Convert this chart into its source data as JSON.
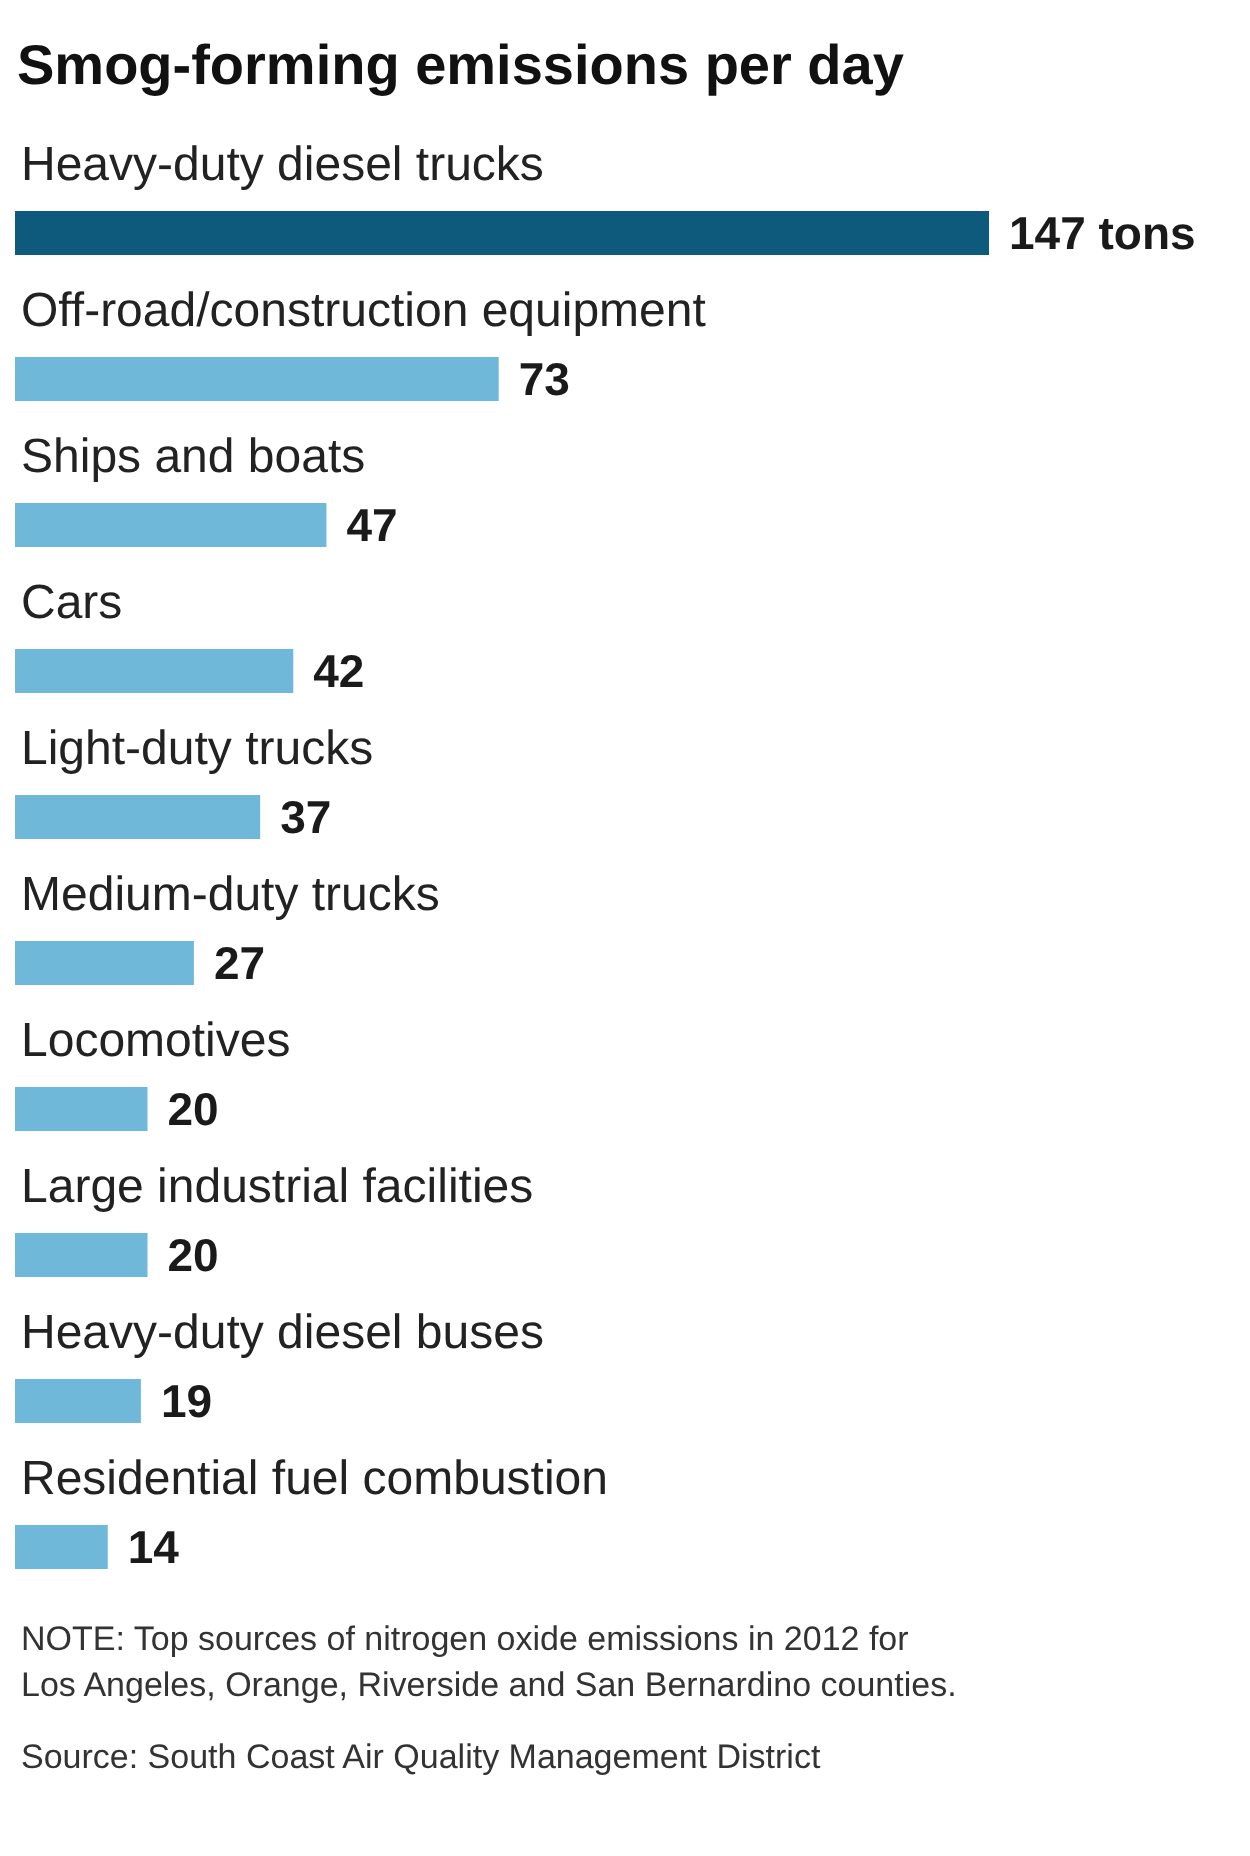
{
  "chart_data": {
    "type": "bar",
    "orientation": "horizontal",
    "title": "Smog-forming emissions per day",
    "categories": [
      "Heavy-duty diesel trucks",
      "Off-road/construction equipment",
      "Ships and boats",
      "Cars",
      "Light-duty trucks",
      "Medium-duty trucks",
      "Locomotives",
      "Large industrial facilities",
      "Heavy-duty diesel buses",
      "Residential fuel combustion"
    ],
    "values": [
      147,
      73,
      47,
      42,
      37,
      27,
      20,
      20,
      19,
      14
    ],
    "colors": [
      "#0d5a7d",
      "#6fb8d9",
      "#6fb8d9",
      "#6fb8d9",
      "#6fb8d9",
      "#6fb8d9",
      "#6fb8d9",
      "#6fb8d9",
      "#6fb8d9",
      "#6fb8d9"
    ],
    "value_labels": [
      "147 tons",
      "73",
      "47",
      "42",
      "37",
      "27",
      "20",
      "20",
      "19",
      "14"
    ],
    "annotations": [
      "NOTE: Top sources of nitrogen oxide emissions in 2012 for Los Angeles, Orange, Riverside and San Bernardino counties.",
      "Source: South Coast Air Quality Management District"
    ]
  }
}
